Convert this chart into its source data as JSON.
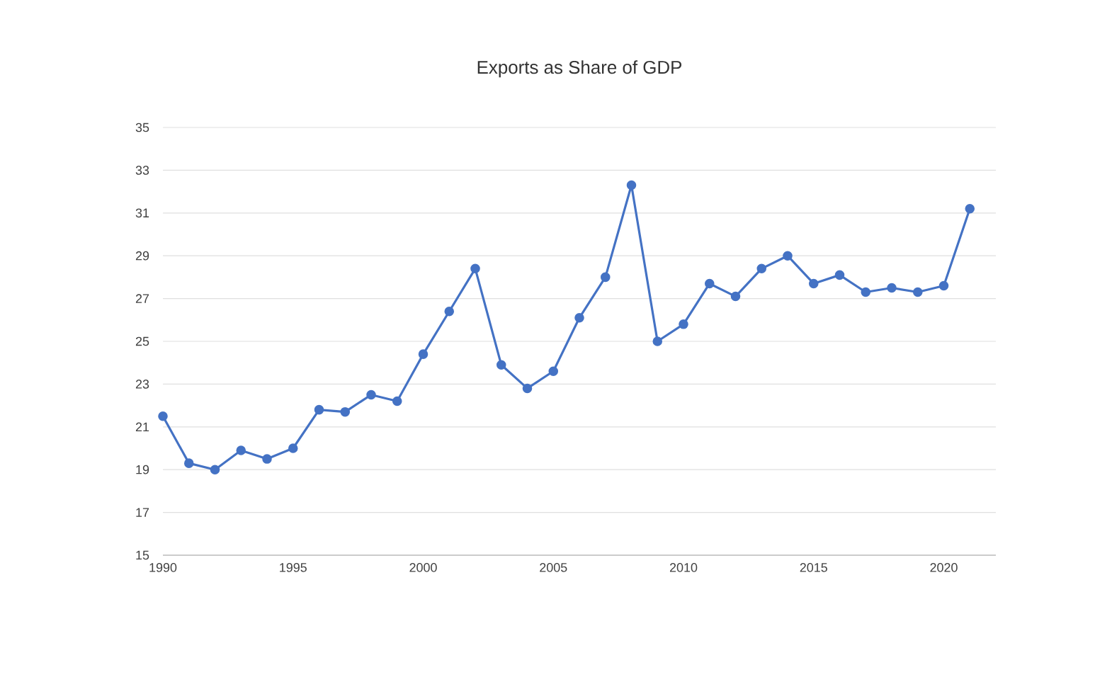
{
  "chart_data": {
    "type": "line",
    "title": "Exports as Share of GDP",
    "x": [
      1990,
      1991,
      1992,
      1993,
      1994,
      1995,
      1996,
      1997,
      1998,
      1999,
      2000,
      2001,
      2002,
      2003,
      2004,
      2005,
      2006,
      2007,
      2008,
      2009,
      2010,
      2011,
      2012,
      2013,
      2014,
      2015,
      2016,
      2017,
      2018,
      2019,
      2020,
      2021
    ],
    "series": [
      {
        "color": "#4472c4",
        "values": [
          21.5,
          19.3,
          19.0,
          19.9,
          19.5,
          20.0,
          21.8,
          21.7,
          22.5,
          22.2,
          24.4,
          26.4,
          28.4,
          23.9,
          22.8,
          23.6,
          26.1,
          28.0,
          32.3,
          25.0,
          25.8,
          27.7,
          27.1,
          28.4,
          29.0,
          27.7,
          28.1,
          27.3,
          27.5,
          27.3,
          27.6,
          31.2
        ]
      }
    ],
    "xlim": [
      1990,
      2022
    ],
    "xticks": [
      1990,
      1995,
      2000,
      2005,
      2010,
      2015,
      2020
    ],
    "ylim": [
      15,
      35
    ],
    "yticks": [
      15,
      17,
      19,
      21,
      23,
      25,
      27,
      29,
      31,
      33,
      35
    ],
    "grid": "y",
    "marker": "circle",
    "line_style": "solid"
  }
}
